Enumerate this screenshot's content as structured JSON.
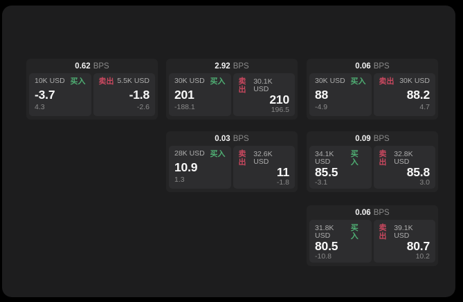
{
  "labels": {
    "bps_unit": "BPS",
    "buy": "买入",
    "sell": "卖出"
  },
  "colors": {
    "buy_green": "#4fae73",
    "sell_red": "#c9485f",
    "panel_bg": "#1d1d1e",
    "card_bg": "#242425",
    "tile_bg": "#2d2d2f"
  },
  "cards": [
    {
      "bps": "0.62",
      "buy_size": "10K USD",
      "buy_value": "-3.7",
      "buy_delta": "4.3",
      "sell_size": "5.5K USD",
      "sell_value": "-1.8",
      "sell_delta": "-2.6"
    },
    {
      "bps": "2.92",
      "buy_size": "30K USD",
      "buy_value": "201",
      "buy_delta": "-188.1",
      "sell_size": "30.1K USD",
      "sell_value": "210",
      "sell_delta": "196.5"
    },
    {
      "bps": "0.06",
      "buy_size": "30K USD",
      "buy_value": "88",
      "buy_delta": "-4.9",
      "sell_size": "30K USD",
      "sell_value": "88.2",
      "sell_delta": "4.7"
    },
    {
      "bps": "0.03",
      "buy_size": "28K USD",
      "buy_value": "10.9",
      "buy_delta": "1.3",
      "sell_size": "32.6K USD",
      "sell_value": "11",
      "sell_delta": "-1.8"
    },
    {
      "bps": "0.09",
      "buy_size": "34.1K USD",
      "buy_value": "85.5",
      "buy_delta": "-3.1",
      "sell_size": "32.8K USD",
      "sell_value": "85.8",
      "sell_delta": "3.0"
    },
    {
      "bps": "0.06",
      "buy_size": "31.8K USD",
      "buy_value": "80.5",
      "buy_delta": "-10.8",
      "sell_size": "39.1K USD",
      "sell_value": "80.7",
      "sell_delta": "10.2"
    }
  ]
}
